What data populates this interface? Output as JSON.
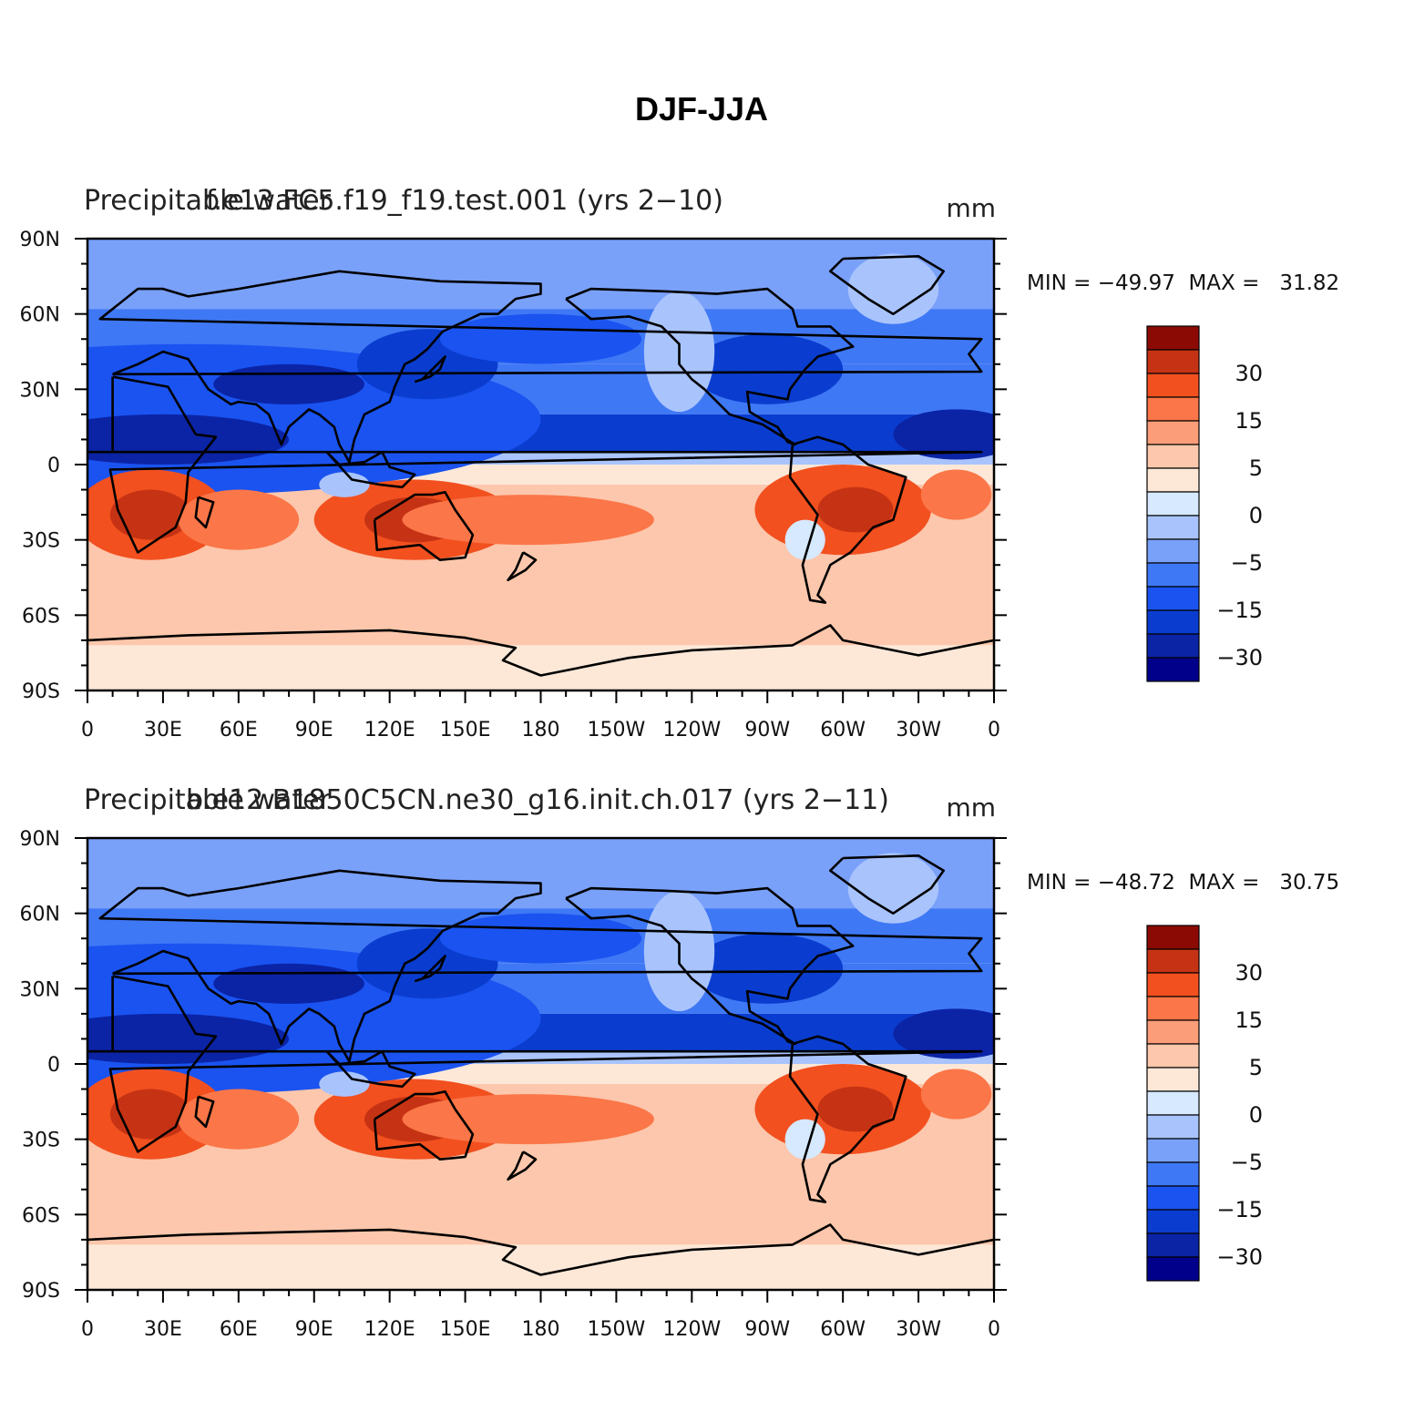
{
  "figure_title": "DJF-JJA",
  "colors": {
    "levels_colors": [
      "#00008b",
      "#0b24a6",
      "#0a3dcf",
      "#1a53f0",
      "#3f78f5",
      "#7aa1fa",
      "#a9c4fd",
      "#d6e9ff",
      "#fde8d8",
      "#fcc7ac",
      "#fb9d79",
      "#fb7648",
      "#f2501f",
      "#c63314",
      "#8c0a04"
    ],
    "coast": "#000000"
  },
  "colorbar": {
    "labels": [
      "30",
      "15",
      "5",
      "0",
      "−5",
      "−15",
      "−30"
    ]
  },
  "axes": {
    "lat_labels": [
      "90N",
      "60N",
      "30N",
      "0",
      "30S",
      "60S",
      "90S"
    ],
    "lon_labels": [
      "0",
      "30E",
      "60E",
      "90E",
      "120E",
      "150E",
      "180",
      "150W",
      "120W",
      "90W",
      "60W",
      "30W",
      "0"
    ]
  },
  "panels": [
    {
      "left_label": "Precipitable water",
      "case_label": "f.e13.FC5.f19_f19.test.001 (yrs 2−10)",
      "units": "mm",
      "stats": "MIN = −49.97  MAX =   31.82"
    },
    {
      "left_label": "Precipitable water",
      "case_label": "b.e12.B1850C5CN.ne30_g16.init.ch.017 (yrs 2−11)",
      "units": "mm",
      "stats": "MIN = −48.72  MAX =   30.75"
    }
  ],
  "chart_data": {
    "type": "heatmap",
    "variable": "Precipitable water",
    "units": "mm",
    "contour_levels": [
      -40,
      -30,
      -25,
      -20,
      -15,
      -10,
      -5,
      -2,
      0,
      2,
      5,
      10,
      15,
      20,
      30,
      40
    ],
    "colorbar_labels": [
      30,
      15,
      5,
      0,
      -5,
      -15,
      -30
    ],
    "lon_range": [
      0,
      360
    ],
    "lat_range": [
      -90,
      90
    ],
    "panels": [
      {
        "case": "f.e13.FC5.f19_f19.test.001 (yrs 2−10)",
        "min": -49.97,
        "max": 31.82
      },
      {
        "case": "b.e12.B1850C5CN.ne30_g16.init.ch.017 (yrs 2−11)",
        "min": -48.72,
        "max": 30.75
      }
    ]
  }
}
